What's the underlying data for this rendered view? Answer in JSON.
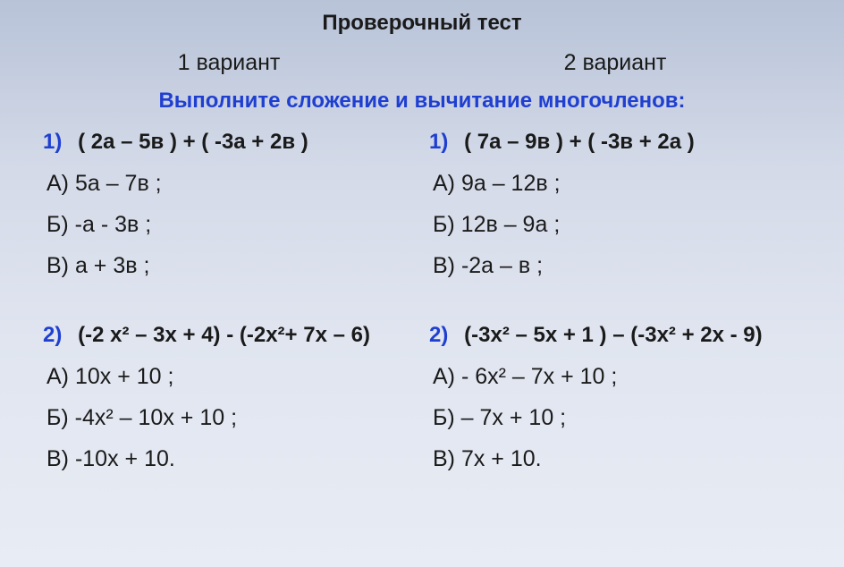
{
  "title": "Проверочный тест",
  "instruction": "Выполните сложение и вычитание многочленов:",
  "colors": {
    "heading": "#1a1a1a",
    "instruction": "#1f3fd1",
    "problem_number": "#1f3fd1",
    "text": "#1a1a1a",
    "bg_top": "#b8c3d8",
    "bg_bottom": "#e8ecf4"
  },
  "fonts": {
    "title_size": 24,
    "variant_size": 25,
    "instruction_size": 24,
    "problem_size": 24,
    "answer_size": 25,
    "family": "Arial"
  },
  "variants": {
    "left": {
      "label": "1 вариант",
      "problems": [
        {
          "num": "1)",
          "expr": "( 2a – 5в ) + ( -3a + 2в )",
          "answers": [
            "А) 5a – 7в ;",
            "Б) -a - 3в ;",
            "В) a + 3в ;"
          ]
        },
        {
          "num": "2)",
          "expr": "(-2 x² – 3x + 4) - (-2x²+ 7x – 6)",
          "answers": [
            "А) 10x + 10 ;",
            "Б)  -4x² – 10x + 10 ;",
            "В) -10x + 10."
          ]
        }
      ]
    },
    "right": {
      "label": "2 вариант",
      "problems": [
        {
          "num": "1)",
          "expr": "( 7a – 9в ) + ( -3в + 2a )",
          "answers": [
            "А) 9a – 12в ;",
            "Б) 12в – 9a ;",
            "В) -2a – в ;"
          ]
        },
        {
          "num": "2)",
          "expr": "(-3x² – 5x + 1 ) – (-3x² + 2x - 9)",
          "answers": [
            "А) - 6x² – 7x + 10 ;",
            "Б) – 7x + 10 ;",
            "В) 7x + 10."
          ]
        }
      ]
    }
  }
}
